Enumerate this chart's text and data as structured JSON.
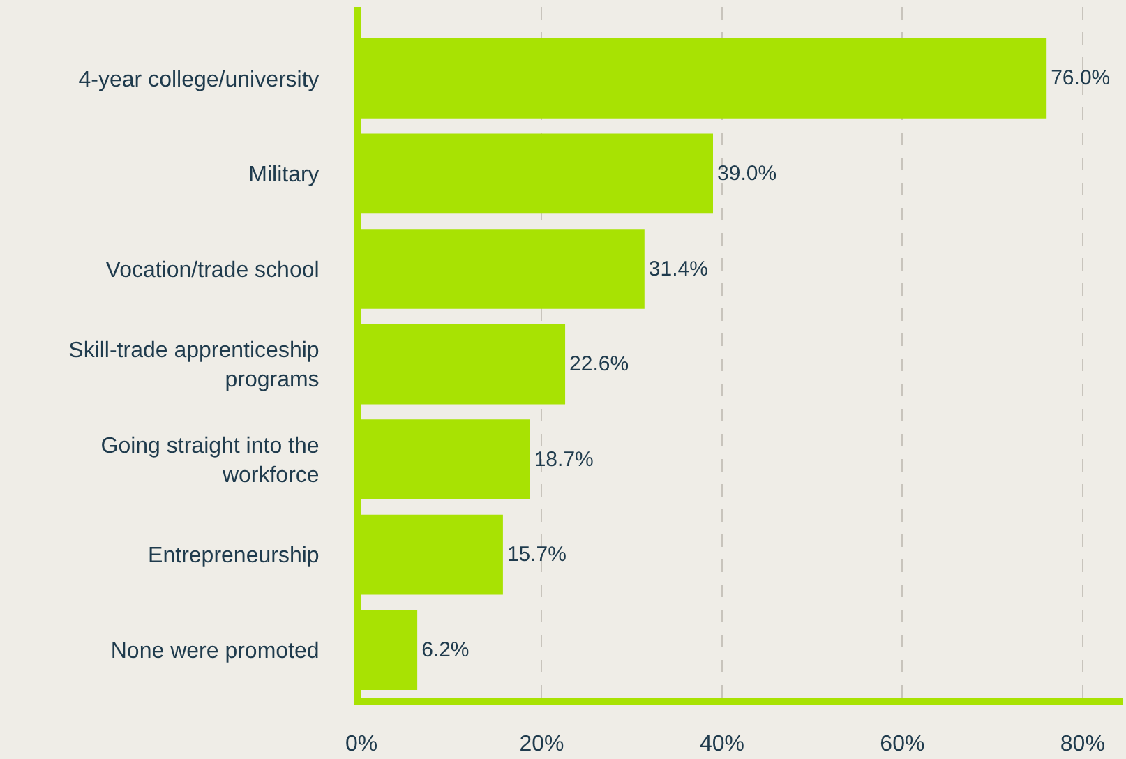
{
  "chart_data": {
    "type": "bar",
    "orientation": "horizontal",
    "categories": [
      "4-year college/university",
      "Military",
      "Vocation/trade school",
      "Skill-trade apprenticeship programs",
      "Going straight into the workforce",
      "Entrepreneurship",
      "None were promoted"
    ],
    "values": [
      76.0,
      39.0,
      31.4,
      22.6,
      18.7,
      15.7,
      6.2
    ],
    "value_labels": [
      "76.0%",
      "39.0%",
      "31.4%",
      "22.6%",
      "18.7%",
      "15.7%",
      "6.2%"
    ],
    "color": "#a8e203",
    "xlim": [
      0,
      84.5
    ],
    "xticks": [
      {
        "value": 0,
        "label": "0%"
      },
      {
        "value": 20,
        "label": "20%"
      },
      {
        "value": 40,
        "label": "40%"
      },
      {
        "value": 60,
        "label": "60%"
      },
      {
        "value": 80,
        "label": "80%"
      }
    ],
    "grid": "x",
    "legend": false
  }
}
